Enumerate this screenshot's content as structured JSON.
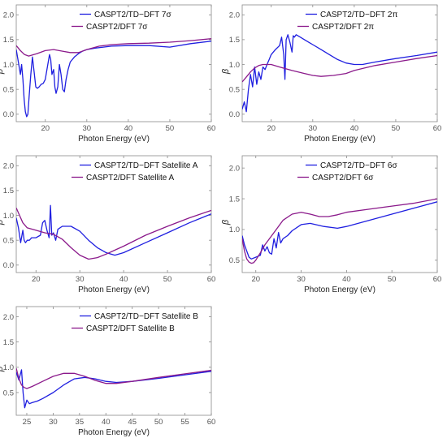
{
  "chart_data": [
    {
      "type": "line",
      "xlabel": "Photon Energy (eV)",
      "ylabel": "β",
      "xlim": [
        13,
        60
      ],
      "ylim": [
        -0.15,
        2.2
      ],
      "xticks": [
        "20",
        "30",
        "40",
        "50",
        "60"
      ],
      "xtick_values": [
        20,
        30,
        40,
        50,
        60
      ],
      "yticks": [
        "0.0",
        "0.5",
        "1.0",
        "1.5",
        "2.0"
      ],
      "ytick_values": [
        0,
        0.5,
        1,
        1.5,
        2
      ],
      "legend_position": "top-center",
      "series": [
        {
          "name": "CASPT2/TD−DFT 7σ",
          "color": "#1f1fe0",
          "x": [
            13,
            13.5,
            14,
            14.3,
            14.6,
            14.9,
            15.2,
            15.5,
            15.8,
            16.1,
            16.5,
            16.9,
            17.3,
            17.7,
            18.1,
            18.5,
            19,
            19.5,
            20,
            20.5,
            21,
            21.3,
            21.6,
            22,
            22.3,
            22.6,
            23,
            23.4,
            23.8,
            24.2,
            24.6,
            25,
            25.5,
            26,
            27,
            28,
            29,
            30,
            32,
            34,
            36,
            40,
            45,
            50,
            55,
            60
          ],
          "y": [
            1.3,
            1.05,
            0.8,
            1.0,
            0.7,
            0.3,
            0.05,
            -0.05,
            0.0,
            0.35,
            0.8,
            1.15,
            0.85,
            0.55,
            0.52,
            0.55,
            0.6,
            0.62,
            0.7,
            0.95,
            1.2,
            1.1,
            0.8,
            0.9,
            0.55,
            0.42,
            0.55,
            1.0,
            0.8,
            0.5,
            0.45,
            0.7,
            0.9,
            1.05,
            1.15,
            1.22,
            1.27,
            1.3,
            1.33,
            1.35,
            1.37,
            1.38,
            1.38,
            1.35,
            1.42,
            1.47
          ]
        },
        {
          "name": "CASPT2/DFT 7σ",
          "color": "#8b1a8b",
          "x": [
            13,
            14,
            15,
            16,
            18,
            20,
            22,
            24,
            26,
            28,
            30,
            33,
            36,
            40,
            45,
            50,
            55,
            60
          ],
          "y": [
            1.38,
            1.28,
            1.2,
            1.17,
            1.22,
            1.28,
            1.3,
            1.27,
            1.24,
            1.24,
            1.3,
            1.37,
            1.4,
            1.42,
            1.43,
            1.45,
            1.48,
            1.52
          ]
        }
      ]
    },
    {
      "type": "line",
      "xlabel": "Photon Energy (eV)",
      "ylabel": "β",
      "xlim": [
        13,
        60
      ],
      "ylim": [
        -0.15,
        2.2
      ],
      "xticks": [
        "20",
        "30",
        "40",
        "50",
        "60"
      ],
      "xtick_values": [
        20,
        30,
        40,
        50,
        60
      ],
      "yticks": [
        "0.0",
        "0.5",
        "1.0",
        "1.5",
        "2.0"
      ],
      "ytick_values": [
        0,
        0.5,
        1,
        1.5,
        2
      ],
      "legend_position": "top-center",
      "series": [
        {
          "name": "CASPT2/TD−DFT 2π",
          "color": "#1f1fe0",
          "x": [
            13,
            13.5,
            14,
            14.5,
            15,
            15.5,
            16,
            16.5,
            17,
            17.5,
            18,
            18.5,
            19,
            19.5,
            20,
            21,
            22,
            22.5,
            23,
            23.3,
            23.6,
            24,
            24.5,
            25,
            25.3,
            25.6,
            26,
            27,
            28,
            30,
            32,
            34,
            36,
            38,
            40,
            42,
            45,
            50,
            55,
            60
          ],
          "y": [
            0.1,
            0.25,
            0.05,
            0.5,
            0.8,
            0.55,
            0.95,
            0.6,
            0.85,
            0.7,
            0.95,
            0.9,
            1.0,
            1.1,
            1.2,
            1.3,
            1.38,
            1.55,
            1.2,
            0.7,
            1.5,
            1.6,
            1.45,
            1.25,
            1.58,
            1.55,
            1.6,
            1.55,
            1.5,
            1.4,
            1.3,
            1.2,
            1.1,
            1.03,
            1.0,
            1.0,
            1.05,
            1.12,
            1.18,
            1.25
          ]
        },
        {
          "name": "CASPT2/DFT 2π",
          "color": "#8b1a8b",
          "x": [
            13,
            14,
            15,
            16,
            17,
            18,
            20,
            22,
            25,
            28,
            30,
            32,
            35,
            38,
            40,
            45,
            50,
            55,
            60
          ],
          "y": [
            0.65,
            0.75,
            0.85,
            0.93,
            0.98,
            1.0,
            1.0,
            0.95,
            0.88,
            0.82,
            0.78,
            0.76,
            0.78,
            0.82,
            0.88,
            0.98,
            1.05,
            1.12,
            1.18
          ]
        }
      ]
    },
    {
      "type": "line",
      "xlabel": "Photon Energy (eV)",
      "ylabel": "β",
      "xlim": [
        15.5,
        60
      ],
      "ylim": [
        -0.15,
        2.2
      ],
      "xticks": [
        "20",
        "30",
        "40",
        "50",
        "60"
      ],
      "xtick_values": [
        20,
        30,
        40,
        50,
        60
      ],
      "yticks": [
        "0.0",
        "0.5",
        "1.0",
        "1.5",
        "2.0"
      ],
      "ytick_values": [
        0,
        0.5,
        1,
        1.5,
        2
      ],
      "legend_position": "top-center",
      "series": [
        {
          "name": "CASPT2/TD−DFT Satellite A",
          "color": "#1f1fe0",
          "x": [
            15.5,
            16,
            16.5,
            17,
            17.3,
            17.6,
            18,
            18.5,
            19,
            20,
            21,
            21.5,
            22,
            22.5,
            23,
            23.3,
            23.6,
            24,
            24.5,
            25,
            26,
            28,
            30,
            32,
            34,
            36,
            38,
            40,
            45,
            50,
            55,
            60
          ],
          "y": [
            0.95,
            0.75,
            0.45,
            0.7,
            0.5,
            0.45,
            0.5,
            0.5,
            0.55,
            0.55,
            0.6,
            0.85,
            0.9,
            0.7,
            0.55,
            1.2,
            0.6,
            0.65,
            0.5,
            0.72,
            0.78,
            0.78,
            0.68,
            0.5,
            0.35,
            0.25,
            0.2,
            0.25,
            0.45,
            0.65,
            0.85,
            1.03
          ]
        },
        {
          "name": "CASPT2/DFT Satellite A",
          "color": "#8b1a8b",
          "x": [
            15.5,
            16,
            17,
            18,
            20,
            22,
            24,
            26,
            28,
            30,
            32,
            34,
            36,
            38,
            40,
            45,
            50,
            55,
            60
          ],
          "y": [
            1.15,
            1.05,
            0.85,
            0.75,
            0.7,
            0.65,
            0.62,
            0.52,
            0.35,
            0.2,
            0.12,
            0.15,
            0.22,
            0.3,
            0.38,
            0.6,
            0.78,
            0.95,
            1.1
          ]
        }
      ]
    },
    {
      "type": "line",
      "xlabel": "Photon Energy (eV)",
      "ylabel": "β",
      "xlim": [
        17,
        60
      ],
      "ylim": [
        0.3,
        2.2
      ],
      "xticks": [
        "20",
        "30",
        "40",
        "50",
        "60"
      ],
      "xtick_values": [
        20,
        30,
        40,
        50,
        60
      ],
      "yticks": [
        "0.5",
        "1.0",
        "1.5",
        "2.0"
      ],
      "ytick_values": [
        0.5,
        1,
        1.5,
        2
      ],
      "legend_position": "top-center",
      "series": [
        {
          "name": "CASPT2/TD−DFT 6σ",
          "color": "#1f1fe0",
          "x": [
            17,
            17.5,
            18,
            18.5,
            19,
            20,
            21,
            21.5,
            22,
            22.5,
            23,
            23.5,
            24,
            24.5,
            25,
            25.5,
            26,
            27,
            28,
            30,
            32,
            35,
            38,
            40,
            45,
            50,
            55,
            60
          ],
          "y": [
            0.9,
            0.75,
            0.65,
            0.55,
            0.52,
            0.55,
            0.58,
            0.75,
            0.65,
            0.72,
            0.62,
            0.6,
            0.85,
            0.7,
            0.95,
            0.78,
            0.85,
            0.9,
            0.98,
            1.08,
            1.1,
            1.05,
            1.02,
            1.05,
            1.15,
            1.25,
            1.35,
            1.45
          ]
        },
        {
          "name": "CASPT2/DFT 6σ",
          "color": "#8b1a8b",
          "x": [
            17,
            17.5,
            18,
            18.5,
            19,
            19.5,
            20,
            21,
            22,
            24,
            26,
            28,
            30,
            32,
            34,
            36,
            38,
            40,
            45,
            50,
            55,
            60
          ],
          "y": [
            0.85,
            0.65,
            0.52,
            0.47,
            0.45,
            0.46,
            0.5,
            0.62,
            0.75,
            0.95,
            1.15,
            1.25,
            1.28,
            1.25,
            1.21,
            1.21,
            1.24,
            1.28,
            1.33,
            1.38,
            1.43,
            1.5
          ]
        }
      ]
    },
    {
      "type": "line",
      "xlabel": "Photon Energy (eV)",
      "ylabel": "β",
      "xlim": [
        23,
        60
      ],
      "ylim": [
        0.05,
        2.2
      ],
      "xticks": [
        "25",
        "30",
        "35",
        "40",
        "45",
        "50",
        "55",
        "60"
      ],
      "xtick_values": [
        25,
        30,
        35,
        40,
        45,
        50,
        55,
        60
      ],
      "yticks": [
        "0.5",
        "1.0",
        "1.5",
        "2.0"
      ],
      "ytick_values": [
        0.5,
        1,
        1.5,
        2
      ],
      "legend_position": "top-center",
      "series": [
        {
          "name": "CASPT2/TD−DFT Satellite B",
          "color": "#1f1fe0",
          "x": [
            23,
            23.5,
            24,
            24.3,
            24.6,
            25,
            25.5,
            26,
            27,
            28,
            30,
            32,
            34,
            36,
            38,
            40,
            42,
            45,
            50,
            55,
            60
          ],
          "y": [
            0.9,
            0.75,
            0.95,
            0.5,
            0.2,
            0.35,
            0.28,
            0.3,
            0.33,
            0.38,
            0.5,
            0.65,
            0.77,
            0.8,
            0.77,
            0.72,
            0.7,
            0.72,
            0.78,
            0.85,
            0.92
          ]
        },
        {
          "name": "CASPT2/DFT Satellite B",
          "color": "#8b1a8b",
          "x": [
            23,
            23.5,
            24,
            24.5,
            25,
            26,
            28,
            30,
            32,
            34,
            36,
            38,
            40,
            42,
            45,
            50,
            55,
            60
          ],
          "y": [
            0.98,
            0.78,
            0.65,
            0.6,
            0.58,
            0.62,
            0.72,
            0.82,
            0.88,
            0.88,
            0.82,
            0.74,
            0.68,
            0.68,
            0.72,
            0.8,
            0.87,
            0.94
          ]
        }
      ]
    }
  ]
}
